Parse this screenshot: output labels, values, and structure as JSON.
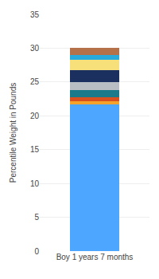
{
  "chart_data": {
    "type": "bar",
    "stacked": true,
    "ylabel": "Percentile Weight in Pounds",
    "categories": [
      "Boy 1 years 7 months"
    ],
    "series": [
      {
        "color": "#4da6ff",
        "values": [
          21.7
        ]
      },
      {
        "color": "#f5a32a",
        "values": [
          0.5
        ]
      },
      {
        "color": "#d94f1e",
        "values": [
          0.6
        ]
      },
      {
        "color": "#1a7a8a",
        "values": [
          1.0
        ]
      },
      {
        "color": "#b8bec4",
        "values": [
          1.2
        ]
      },
      {
        "color": "#1c3060",
        "values": [
          1.8
        ]
      },
      {
        "color": "#f7e07a",
        "values": [
          1.5
        ]
      },
      {
        "color": "#29aadd",
        "values": [
          0.7
        ]
      },
      {
        "color": "#b5714a",
        "values": [
          1.0
        ]
      }
    ],
    "ylim": [
      0,
      35
    ],
    "yticks": [
      0,
      5,
      10,
      15,
      20,
      25,
      30,
      35
    ],
    "grid": true
  }
}
